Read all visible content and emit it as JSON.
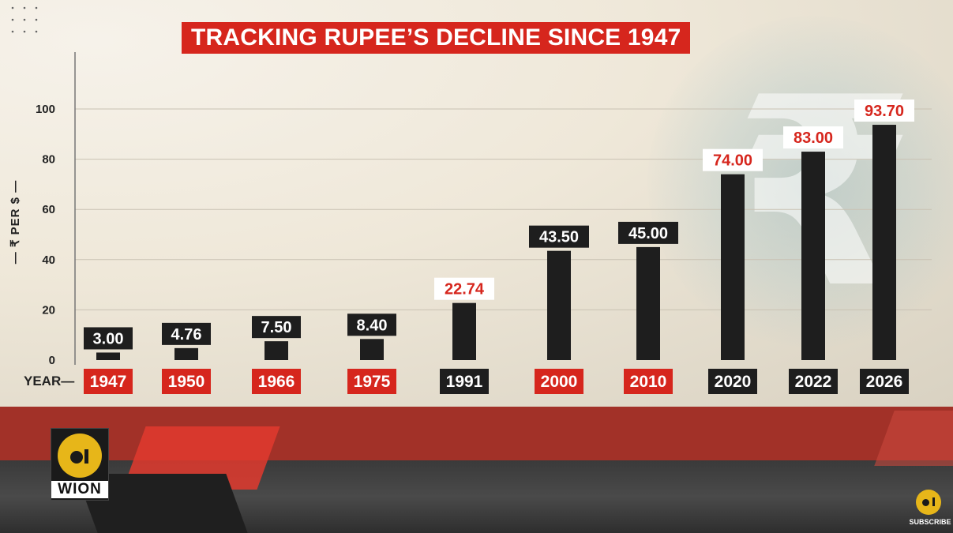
{
  "title": "TRACKING RUPEE’S DECLINE SINCE 1947",
  "ylabel": "— ₹ PER $ —",
  "xaxis_label": "YEAR—",
  "logo_text": "WION",
  "subscribe_label": "SUBSCRIBE",
  "colors": {
    "accent_red": "#d6261d",
    "bar": "#1e1e1e",
    "label_dark_bg": "#1e1e1e",
    "label_light_bg": "#ffffff"
  },
  "chart_data": {
    "type": "bar",
    "title": "TRACKING RUPEE’S DECLINE SINCE 1947",
    "ylabel": "₹ PER $",
    "xlabel": "YEAR",
    "ylim": [
      0,
      110
    ],
    "yticks": [
      0,
      20,
      40,
      60,
      80,
      100
    ],
    "grid": true,
    "categories": [
      "1947",
      "1950",
      "1966",
      "1975",
      "1991",
      "2000",
      "2010",
      "2020",
      "2022",
      "2026"
    ],
    "values": [
      3.0,
      4.76,
      7.5,
      8.4,
      22.74,
      43.5,
      45.0,
      74.0,
      83.0,
      93.7
    ],
    "value_labels": [
      "3.00",
      "4.76",
      "7.50",
      "8.40",
      "22.74",
      "43.50",
      "45.00",
      "74.00",
      "83.00",
      "93.70"
    ],
    "year_label_style": [
      "red",
      "red",
      "red",
      "red",
      "dark",
      "red",
      "red",
      "dark",
      "dark",
      "dark"
    ],
    "value_label_style": [
      "dark",
      "dark",
      "dark",
      "dark",
      "light",
      "dark",
      "dark",
      "light",
      "light",
      "light"
    ]
  }
}
